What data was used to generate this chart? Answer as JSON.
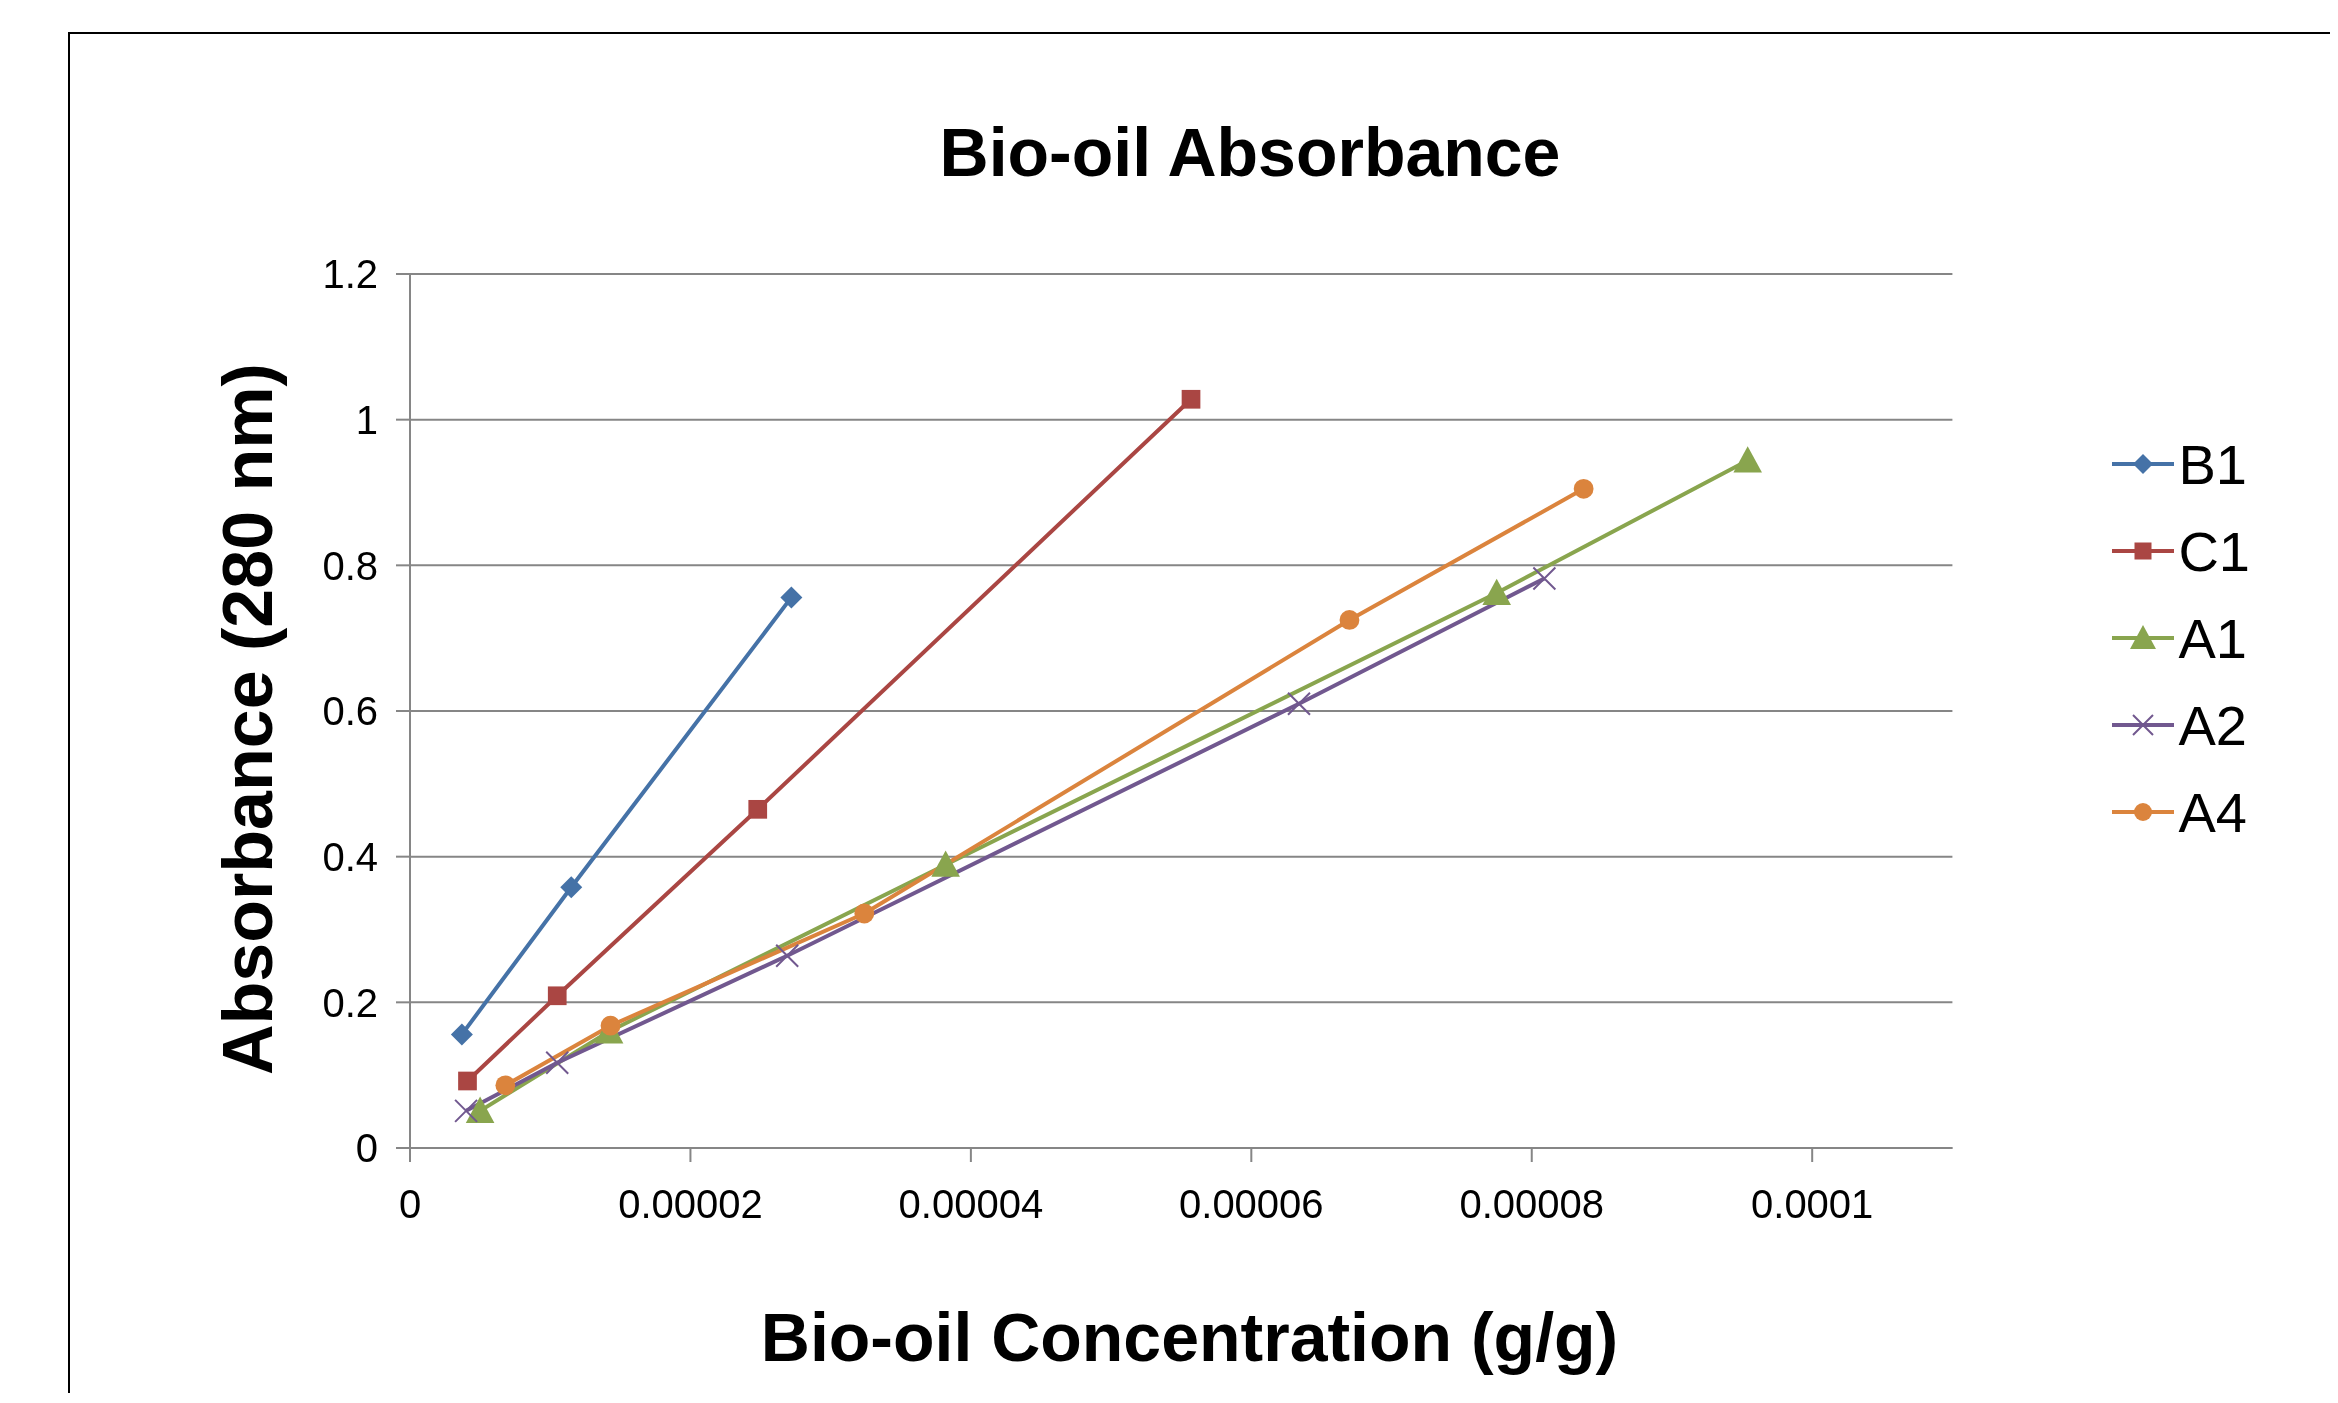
{
  "chart_data": {
    "type": "line",
    "title": "Bio-oil Absorbance",
    "xlabel": "Bio-oil Concentration (g/g)",
    "ylabel": "Absorbance (280  nm)",
    "xlim": [
      0,
      0.00011
    ],
    "xticks": [
      0,
      {
        "value": 2e-05,
        "label": "0.00002"
      },
      {
        "value": 4e-05,
        "label": "0.00004"
      },
      {
        "value": 6e-05,
        "label": "0.00006"
      },
      {
        "value": 8e-05,
        "label": "0.00008"
      },
      0.0001
    ],
    "ylim": [
      0,
      1.2
    ],
    "yticks": [
      0,
      0.2,
      0.4,
      0.6,
      0.8,
      1,
      1.2
    ],
    "grid": "y",
    "legend": "right",
    "series": [
      {
        "name": "B1",
        "color": "#4572a7",
        "marker": "diamond",
        "x": [
          3.7e-06,
          1.15e-05,
          2.72e-05
        ],
        "values": [
          0.156,
          0.358,
          0.756
        ]
      },
      {
        "name": "C1",
        "color": "#aa4643",
        "marker": "square",
        "x": [
          4.1e-06,
          1.05e-05,
          2.48e-05,
          5.57e-05
        ],
        "values": [
          0.092,
          0.209,
          0.465,
          1.028
        ]
      },
      {
        "name": "A1",
        "color": "#89a54e",
        "marker": "triangle",
        "x": [
          5e-06,
          1.42e-05,
          3.82e-05,
          7.75e-05,
          9.54e-05
        ],
        "values": [
          0.051,
          0.16,
          0.389,
          0.762,
          0.944
        ]
      },
      {
        "name": "A2",
        "color": "#71588f",
        "marker": "cross",
        "x": [
          4e-06,
          1.05e-05,
          2.69e-05,
          6.34e-05,
          8.09e-05
        ],
        "values": [
          0.051,
          0.117,
          0.264,
          0.61,
          0.782
        ]
      },
      {
        "name": "A4",
        "color": "#db843d",
        "marker": "circle",
        "x": [
          6.8e-06,
          1.43e-05,
          3.24e-05,
          6.7e-05,
          8.37e-05
        ],
        "values": [
          0.086,
          0.168,
          0.322,
          0.725,
          0.905
        ]
      }
    ]
  }
}
